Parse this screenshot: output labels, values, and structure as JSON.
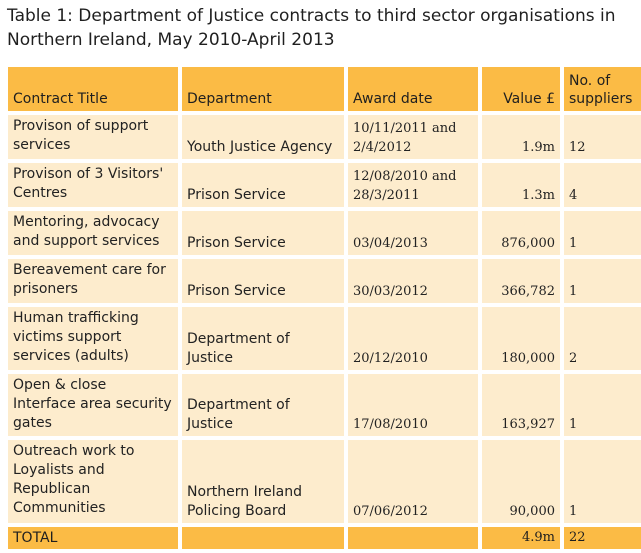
{
  "caption": "Table 1: Department of Justice contracts to third sector organisations in Northern Ireland, May 2010-April 2013",
  "headers": {
    "contract_title": "Contract Title",
    "department": "Department",
    "award_date": "Award date",
    "value": "Value £",
    "suppliers": "No. of suppliers"
  },
  "rows": [
    {
      "title": "Provison of support services",
      "department": "Youth Justice Agency",
      "award_date": "10/11/2011 and 2/4/2012",
      "value": "1.9m",
      "suppliers": "12"
    },
    {
      "title": "Provison of 3 Visitors' Centres",
      "department": "Prison Service",
      "award_date": "12/08/2010 and 28/3/2011",
      "value": "1.3m",
      "suppliers": "4"
    },
    {
      "title": "Mentoring, advocacy and support services",
      "department": "Prison Service",
      "award_date": "03/04/2013",
      "value": "876,000",
      "suppliers": "1"
    },
    {
      "title": "Bereavement care for prisoners",
      "department": "Prison Service",
      "award_date": "30/03/2012",
      "value": "366,782",
      "suppliers": "1"
    },
    {
      "title": "Human trafficking victims support services (adults)",
      "department": "Department of Justice",
      "award_date": "20/12/2010",
      "value": "180,000",
      "suppliers": "2"
    },
    {
      "title": "Open & close Interface area security gates",
      "department": "Department of Justice",
      "award_date": "17/08/2010",
      "value": "163,927",
      "suppliers": "1"
    },
    {
      "title": "Outreach work to Loyalists and Republican Communities",
      "department": "Northern Ireland Policing Board",
      "award_date": "07/06/2012",
      "value": "90,000",
      "suppliers": "1"
    }
  ],
  "total": {
    "label": "TOTAL",
    "value": "4.9m",
    "suppliers": "22"
  }
}
